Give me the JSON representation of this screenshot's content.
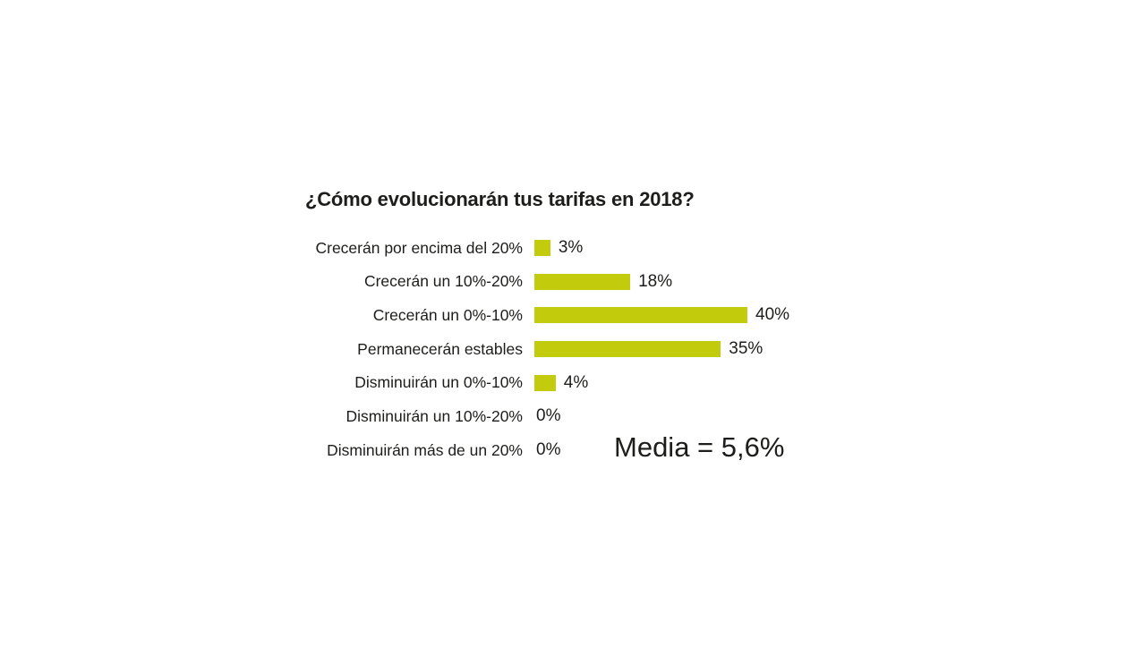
{
  "chart_data": {
    "type": "bar",
    "orientation": "horizontal",
    "title": "¿Cómo evolucionarán tus tarifas en 2018?",
    "categories": [
      "Crecerán por encima del 20%",
      "Crecerán un 10%-20%",
      "Crecerán un 0%-10%",
      "Permanecerán estables",
      "Disminuirán un 0%-10%",
      "Disminuirán un 10%-20%",
      "Disminuirán más de un 20%"
    ],
    "values": [
      3,
      18,
      40,
      35,
      4,
      0,
      0
    ],
    "value_labels": [
      "3%",
      "18%",
      "40%",
      "35%",
      "4%",
      "0%",
      "0%"
    ],
    "annotation": "Media = 5,6%",
    "bar_color": "#c3cc0c",
    "text_color": "#1d1d1b",
    "background_color": "#ffffff",
    "xlim": [
      0,
      40
    ],
    "grid": false,
    "legend": false
  }
}
